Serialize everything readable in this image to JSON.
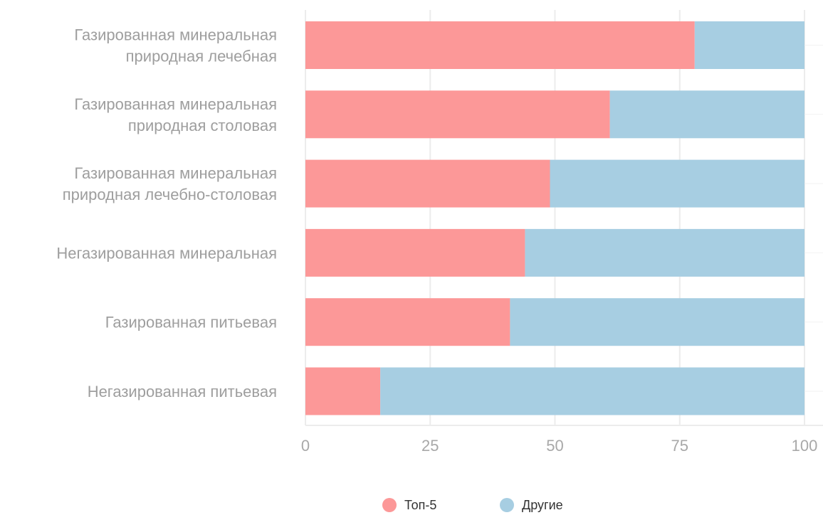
{
  "chart_data": {
    "type": "bar",
    "orientation": "horizontal",
    "stacked": true,
    "categories": [
      [
        "Газированная минеральная",
        "природная лечебная"
      ],
      [
        "Газированная минеральная",
        "природная столовая"
      ],
      [
        "Газированная минеральная",
        "природная лечебно-столовая"
      ],
      [
        "Негазированная минеральная"
      ],
      [
        "Газированная питьевая"
      ],
      [
        "Негазированная питьевая"
      ]
    ],
    "series": [
      {
        "name": "Топ-5",
        "color": "#fc9898",
        "values": [
          78,
          61,
          49,
          44,
          41,
          15
        ]
      },
      {
        "name": "Другие",
        "color": "#a7cee2",
        "values": [
          22,
          39,
          51,
          56,
          59,
          85
        ]
      }
    ],
    "xlim": [
      0,
      100
    ],
    "xticks": [
      "0",
      "25",
      "50",
      "75",
      "100"
    ],
    "xtick_values": [
      0,
      25,
      50,
      75,
      100
    ],
    "grid": true,
    "legend_position": "bottom-center",
    "title": "",
    "xlabel": "",
    "ylabel": ""
  }
}
